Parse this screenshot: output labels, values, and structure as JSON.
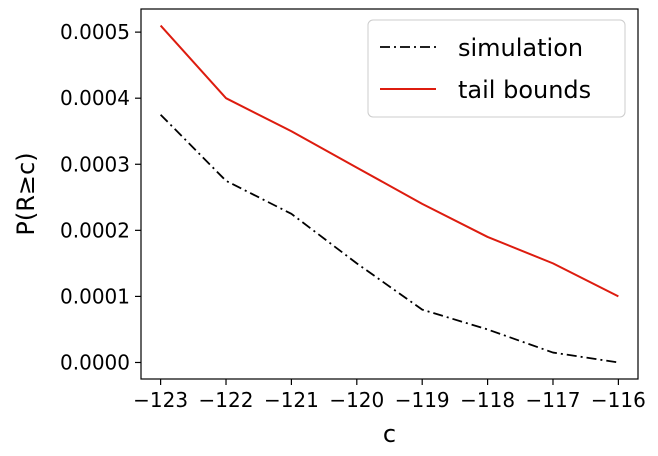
{
  "chart_data": {
    "type": "line",
    "xlabel": "c",
    "ylabel": "P(R≥c)",
    "x": [
      -123,
      -122,
      -121,
      -120,
      -119,
      -118,
      -117,
      -116
    ],
    "xlim": [
      -123.3,
      -115.7
    ],
    "ylim": [
      -2.5e-05,
      0.000535
    ],
    "xticks": [
      -123,
      -122,
      -121,
      -120,
      -119,
      -118,
      -117,
      -116
    ],
    "xtick_labels": [
      "−123",
      "−122",
      "−121",
      "−120",
      "−119",
      "−118",
      "−117",
      "−116"
    ],
    "yticks": [
      0,
      0.0001,
      0.0002,
      0.0003,
      0.0004,
      0.0005
    ],
    "ytick_labels": [
      "0.0000",
      "0.0001",
      "0.0002",
      "0.0003",
      "0.0004",
      "0.0005"
    ],
    "grid": false,
    "legend_position": "top-right",
    "series": [
      {
        "name": "simulation",
        "values": [
          0.000375,
          0.000275,
          0.000225,
          0.00015,
          8e-05,
          5e-05,
          1.5e-05,
          0
        ],
        "color": "#000000",
        "style": "dashdot"
      },
      {
        "name": "tail bounds",
        "values": [
          0.00051,
          0.0004,
          0.00035,
          0.000295,
          0.00024,
          0.00019,
          0.00015,
          0.0001
        ],
        "color": "#dd1c0f",
        "style": "solid"
      }
    ]
  }
}
